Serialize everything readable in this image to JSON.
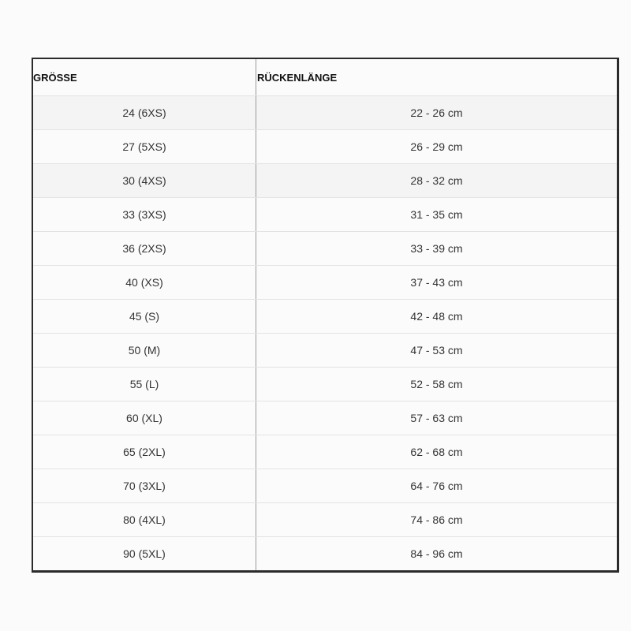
{
  "table": {
    "headers": [
      "GRÖSSE",
      "RÜCKENLÄNGE"
    ],
    "rows": [
      [
        "24 (6XS)",
        "22 - 26 cm"
      ],
      [
        "27 (5XS)",
        "26 - 29 cm"
      ],
      [
        "30 (4XS)",
        "28 - 32 cm"
      ],
      [
        "33 (3XS)",
        "31 - 35 cm"
      ],
      [
        "36 (2XS)",
        "33 - 39 cm"
      ],
      [
        "40 (XS)",
        "37 - 43 cm"
      ],
      [
        "45 (S)",
        "42 - 48 cm"
      ],
      [
        "50 (M)",
        "47 - 53 cm"
      ],
      [
        "55 (L)",
        "52 - 58 cm"
      ],
      [
        "60 (XL)",
        "57 - 63 cm"
      ],
      [
        "65 (2XL)",
        "62 - 68 cm"
      ],
      [
        "70 (3XL)",
        "64 - 76 cm"
      ],
      [
        "80 (4XL)",
        "74 - 86 cm"
      ],
      [
        "90 (5XL)",
        "84 - 96 cm"
      ]
    ]
  }
}
